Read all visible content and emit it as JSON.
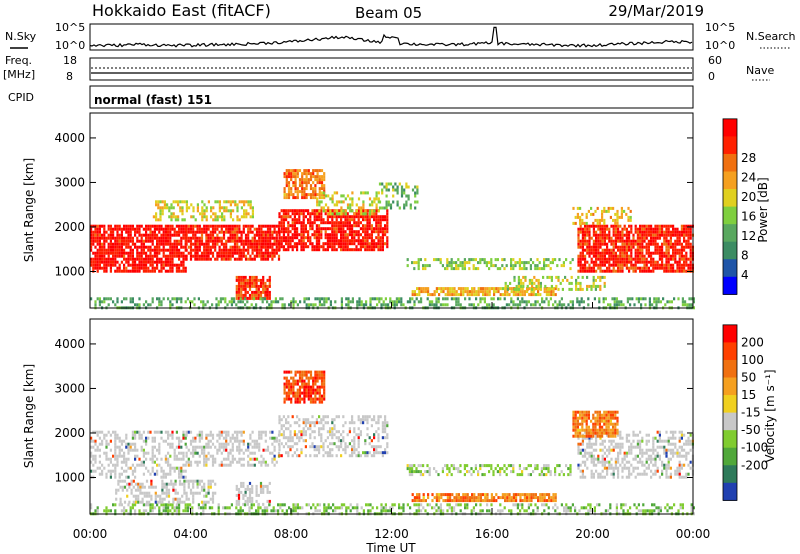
{
  "header": {
    "station": "Hokkaido East (fitACF)",
    "beam": "Beam 05",
    "date": "29/Mar/2019"
  },
  "sky_panel": {
    "label": "N.Sky",
    "ticks": [
      "10^5",
      "10^0"
    ],
    "right_label": "N.Search"
  },
  "freq_panel": {
    "label_line1": "Freq.",
    "label_line2": "[MHz]",
    "left_ticks": [
      "18",
      "8"
    ],
    "right_ticks": [
      "60",
      "0"
    ],
    "right_label": "Nave"
  },
  "cpid_panel": {
    "label": "CPID",
    "text": "normal (fast) 151"
  },
  "x_axis": {
    "label": "Time UT",
    "ticks": [
      "00:00",
      "04:00",
      "08:00",
      "12:00",
      "16:00",
      "20:00",
      "00:00"
    ]
  },
  "chart_data": [
    {
      "type": "heatmap",
      "name": "power",
      "ylabel": "Slant Range [km]",
      "yticks": [
        "1000",
        "2000",
        "3000",
        "4000"
      ],
      "ylim": [
        180,
        4560
      ],
      "xlim_hours": [
        0,
        24
      ],
      "colorbar_label": "Power [dB]",
      "colorbar_ticks": [
        "4",
        "8",
        "12",
        "16",
        "20",
        "24",
        "28"
      ],
      "colorbar_colors": [
        "#0000ff",
        "#1f55a8",
        "#3c8c63",
        "#59a85f",
        "#7fcf3f",
        "#e0d020",
        "#f5a020",
        "#f07010",
        "#ff2000",
        "#ff0000"
      ],
      "bands": [
        {
          "t": [
            0.0,
            3.8
          ],
          "r": [
            1000,
            2050
          ],
          "level": 0.92
        },
        {
          "t": [
            3.8,
            7.5
          ],
          "r": [
            1250,
            2050
          ],
          "level": 0.9
        },
        {
          "t": [
            7.5,
            11.8
          ],
          "r": [
            1500,
            2400
          ],
          "level": 0.9
        },
        {
          "t": [
            7.7,
            9.3
          ],
          "r": [
            2650,
            3300
          ],
          "level": 0.72
        },
        {
          "t": [
            2.5,
            6.5
          ],
          "r": [
            2150,
            2600
          ],
          "level": 0.55
        },
        {
          "t": [
            5.8,
            7.2
          ],
          "r": [
            400,
            900
          ],
          "level": 0.85
        },
        {
          "t": [
            9.0,
            11.5
          ],
          "r": [
            2300,
            2800
          ],
          "level": 0.55
        },
        {
          "t": [
            12.8,
            18.5
          ],
          "r": [
            450,
            650
          ],
          "level": 0.62
        },
        {
          "t": [
            12.6,
            19.2
          ],
          "r": [
            1050,
            1300
          ],
          "level": 0.45
        },
        {
          "t": [
            16.5,
            20.5
          ],
          "r": [
            600,
            900
          ],
          "level": 0.5
        },
        {
          "t": [
            19.4,
            24.0
          ],
          "r": [
            1000,
            2050
          ],
          "level": 0.88
        },
        {
          "t": [
            19.2,
            21.5
          ],
          "r": [
            2050,
            2450
          ],
          "level": 0.6
        },
        {
          "t": [
            0.0,
            24.0
          ],
          "r": [
            180,
            420
          ],
          "level": 0.35
        },
        {
          "t": [
            11.5,
            13.0
          ],
          "r": [
            2400,
            3000
          ],
          "level": 0.4
        }
      ]
    },
    {
      "type": "heatmap",
      "name": "velocity",
      "ylabel": "Slant Range [km]",
      "yticks": [
        "1000",
        "2000",
        "3000",
        "4000"
      ],
      "ylim": [
        180,
        4560
      ],
      "xlim_hours": [
        0,
        24
      ],
      "colorbar_label": "Velocity [m s⁻¹]",
      "colorbar_ticks": [
        "200",
        "100",
        "50",
        "15",
        "-15",
        "-50",
        "-100",
        "-200"
      ],
      "colorbar_colors": [
        "#2040b0",
        "#2e7a5a",
        "#50a83a",
        "#80cc30",
        "#c8c8c8",
        "#f0d020",
        "#f5a020",
        "#f07010",
        "#ff4000",
        "#ff0000"
      ],
      "bands": [
        {
          "t": [
            0.0,
            3.8
          ],
          "r": [
            1000,
            2050
          ],
          "level": 0.5
        },
        {
          "t": [
            3.8,
            7.5
          ],
          "r": [
            1250,
            2050
          ],
          "level": 0.5
        },
        {
          "t": [
            7.5,
            11.8
          ],
          "r": [
            1500,
            2400
          ],
          "level": 0.5
        },
        {
          "t": [
            7.7,
            9.3
          ],
          "r": [
            2700,
            3400
          ],
          "level": 0.85
        },
        {
          "t": [
            5.8,
            7.2
          ],
          "r": [
            400,
            900
          ],
          "level": 0.5
        },
        {
          "t": [
            12.8,
            18.5
          ],
          "r": [
            450,
            650
          ],
          "level": 0.72
        },
        {
          "t": [
            12.6,
            19.2
          ],
          "r": [
            1050,
            1300
          ],
          "level": 0.4
        },
        {
          "t": [
            19.4,
            24.0
          ],
          "r": [
            1000,
            2050
          ],
          "level": 0.5
        },
        {
          "t": [
            19.2,
            21.0
          ],
          "r": [
            1900,
            2500
          ],
          "level": 0.72
        },
        {
          "t": [
            0.0,
            24.0
          ],
          "r": [
            180,
            420
          ],
          "level": 0.35
        },
        {
          "t": [
            1.0,
            5.0
          ],
          "r": [
            450,
            950
          ],
          "level": 0.5
        }
      ]
    }
  ],
  "sky_noise": {
    "hours": [
      0,
      1,
      2,
      3,
      4,
      5,
      6,
      7,
      8,
      9,
      10,
      11,
      12,
      13,
      14,
      15,
      16,
      17,
      18,
      19,
      20,
      21,
      22,
      23,
      24
    ],
    "level": [
      0.15,
      0.15,
      0.2,
      0.15,
      0.15,
      0.18,
      0.2,
      0.25,
      0.3,
      0.4,
      0.5,
      0.35,
      0.25,
      0.2,
      0.18,
      0.2,
      0.25,
      0.2,
      0.18,
      0.15,
      0.15,
      0.2,
      0.25,
      0.3,
      0.3
    ]
  }
}
